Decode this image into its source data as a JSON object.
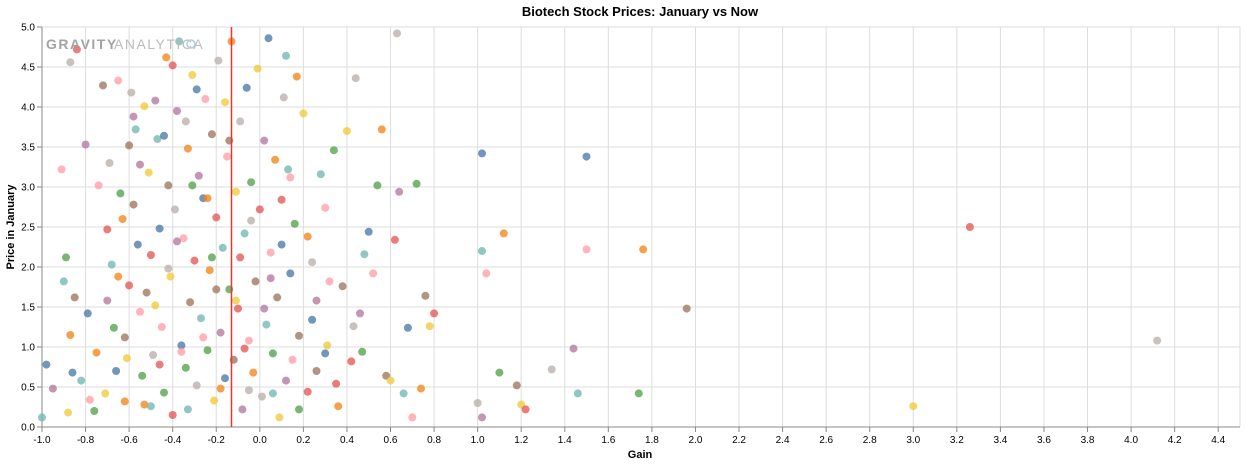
{
  "logo": {
    "word1": "GRAVITY",
    "word2": "ANALYTICA"
  },
  "chart_data": {
    "type": "scatter",
    "title": "Biotech Stock Prices: January vs Now",
    "xlabel": "Gain",
    "ylabel": "Price in January",
    "xlim": [
      -1.0,
      4.5
    ],
    "ylim": [
      0.0,
      5.0
    ],
    "x_ticks": [
      "-1.0",
      "-0.8",
      "-0.6",
      "-0.4",
      "-0.2",
      "0.0",
      "0.2",
      "0.4",
      "0.6",
      "0.8",
      "1.0",
      "1.2",
      "1.4",
      "1.6",
      "1.8",
      "2.0",
      "2.2",
      "2.4",
      "2.6",
      "2.8",
      "3.0",
      "3.2",
      "3.4",
      "3.6",
      "3.8",
      "4.0",
      "4.2",
      "4.4"
    ],
    "y_ticks": [
      "0.0",
      "0.5",
      "1.0",
      "1.5",
      "2.0",
      "2.5",
      "3.0",
      "3.5",
      "4.0",
      "4.5",
      "5.0"
    ],
    "grid": true,
    "reference_line": {
      "axis": "x",
      "value": -0.13,
      "color": "#e8372e"
    },
    "palette": [
      "#4c78a8",
      "#f58518",
      "#e45756",
      "#72b7b2",
      "#54a24b",
      "#eeca3b",
      "#b279a2",
      "#ff9da6",
      "#9d755d",
      "#bab0ac"
    ],
    "points": [
      [
        -1.0,
        0.12
      ],
      [
        -0.98,
        0.78
      ],
      [
        -0.91,
        3.22
      ],
      [
        -0.89,
        2.12
      ],
      [
        -0.87,
        1.15
      ],
      [
        -0.85,
        1.62
      ],
      [
        -0.88,
        0.18
      ],
      [
        -0.84,
        4.72
      ],
      [
        -0.87,
        4.56
      ],
      [
        -0.8,
        3.53
      ],
      [
        -0.82,
        0.58
      ],
      [
        -0.79,
        1.42
      ],
      [
        -0.78,
        0.34
      ],
      [
        -0.76,
        0.2
      ],
      [
        -0.75,
        0.93
      ],
      [
        -0.72,
        4.27
      ],
      [
        -0.71,
        0.42
      ],
      [
        -0.7,
        2.47
      ],
      [
        -0.69,
        3.3
      ],
      [
        -0.7,
        1.58
      ],
      [
        -0.68,
        2.03
      ],
      [
        -0.66,
        0.7
      ],
      [
        -0.65,
        4.33
      ],
      [
        -0.64,
        2.92
      ],
      [
        -0.63,
        2.6
      ],
      [
        -0.62,
        1.12
      ],
      [
        -0.61,
        0.86
      ],
      [
        -0.6,
        1.77
      ],
      [
        -0.59,
        4.18
      ],
      [
        -0.58,
        3.88
      ],
      [
        -0.57,
        3.72
      ],
      [
        -0.56,
        2.28
      ],
      [
        -0.55,
        1.44
      ],
      [
        -0.54,
        0.64
      ],
      [
        -0.53,
        0.28
      ],
      [
        -0.52,
        1.68
      ],
      [
        -0.51,
        3.18
      ],
      [
        -0.5,
        2.15
      ],
      [
        -0.49,
        0.9
      ],
      [
        -0.48,
        4.08
      ],
      [
        -0.47,
        3.6
      ],
      [
        -0.46,
        2.48
      ],
      [
        -0.45,
        1.25
      ],
      [
        -0.44,
        0.43
      ],
      [
        -0.43,
        4.62
      ],
      [
        -0.42,
        3.02
      ],
      [
        -0.41,
        1.88
      ],
      [
        -0.4,
        0.15
      ],
      [
        -0.39,
        2.72
      ],
      [
        -0.38,
        3.95
      ],
      [
        -0.37,
        4.82
      ],
      [
        -0.36,
        1.02
      ],
      [
        -0.35,
        2.36
      ],
      [
        -0.34,
        0.74
      ],
      [
        -0.33,
        3.48
      ],
      [
        -0.32,
        1.56
      ],
      [
        -0.31,
        4.4
      ],
      [
        -0.3,
        2.08
      ],
      [
        -0.29,
        0.52
      ],
      [
        -0.28,
        3.14
      ],
      [
        -0.27,
        1.36
      ],
      [
        -0.26,
        2.86
      ],
      [
        -0.25,
        4.1
      ],
      [
        -0.24,
        0.96
      ],
      [
        -0.23,
        1.96
      ],
      [
        -0.22,
        3.66
      ],
      [
        -0.21,
        0.33
      ],
      [
        -0.2,
        2.62
      ],
      [
        -0.19,
        4.58
      ],
      [
        -0.18,
        1.18
      ],
      [
        -0.17,
        2.24
      ],
      [
        -0.16,
        0.61
      ],
      [
        -0.15,
        3.38
      ],
      [
        -0.14,
        1.72
      ],
      [
        -0.13,
        4.82
      ],
      [
        -0.12,
        0.84
      ],
      [
        -0.11,
        2.94
      ],
      [
        -0.1,
        1.48
      ],
      [
        -0.09,
        3.82
      ],
      [
        -0.08,
        0.22
      ],
      [
        -0.07,
        2.42
      ],
      [
        -0.06,
        4.24
      ],
      [
        -0.05,
        1.08
      ],
      [
        -0.04,
        3.06
      ],
      [
        -0.03,
        0.68
      ],
      [
        -0.02,
        1.82
      ],
      [
        -0.01,
        4.48
      ],
      [
        0.0,
        2.72
      ],
      [
        0.01,
        0.38
      ],
      [
        0.02,
        3.58
      ],
      [
        0.03,
        1.28
      ],
      [
        0.04,
        4.86
      ],
      [
        0.05,
        2.18
      ],
      [
        0.06,
        0.92
      ],
      [
        0.07,
        3.34
      ],
      [
        0.08,
        1.62
      ],
      [
        0.09,
        0.12
      ],
      [
        0.1,
        2.84
      ],
      [
        0.11,
        4.12
      ],
      [
        0.12,
        0.58
      ],
      [
        0.13,
        3.22
      ],
      [
        0.14,
        1.92
      ],
      [
        0.15,
        0.84
      ],
      [
        0.16,
        2.54
      ],
      [
        0.17,
        4.38
      ],
      [
        0.18,
        1.14
      ],
      [
        0.2,
        3.92
      ],
      [
        0.22,
        0.44
      ],
      [
        0.24,
        2.06
      ],
      [
        0.26,
        1.58
      ],
      [
        0.28,
        3.16
      ],
      [
        0.3,
        0.92
      ],
      [
        0.32,
        1.82
      ],
      [
        0.34,
        3.46
      ],
      [
        0.36,
        0.26
      ],
      [
        0.38,
        1.76
      ],
      [
        0.4,
        3.7
      ],
      [
        0.42,
        0.82
      ],
      [
        0.44,
        4.36
      ],
      [
        0.46,
        1.42
      ],
      [
        0.48,
        2.16
      ],
      [
        0.5,
        2.44
      ],
      [
        0.52,
        1.92
      ],
      [
        0.54,
        3.02
      ],
      [
        0.56,
        3.72
      ],
      [
        0.58,
        0.64
      ],
      [
        0.6,
        0.58
      ],
      [
        0.62,
        2.34
      ],
      [
        0.63,
        4.92
      ],
      [
        0.64,
        2.94
      ],
      [
        0.66,
        0.42
      ],
      [
        0.68,
        1.24
      ],
      [
        0.7,
        0.12
      ],
      [
        0.72,
        3.04
      ],
      [
        0.74,
        0.48
      ],
      [
        0.76,
        1.64
      ],
      [
        0.78,
        1.26
      ],
      [
        0.8,
        1.42
      ],
      [
        1.0,
        0.3
      ],
      [
        1.02,
        0.12
      ],
      [
        1.02,
        2.2
      ],
      [
        1.02,
        3.42
      ],
      [
        1.04,
        1.92
      ],
      [
        1.1,
        0.68
      ],
      [
        1.12,
        2.42
      ],
      [
        1.18,
        0.52
      ],
      [
        1.2,
        0.28
      ],
      [
        1.22,
        0.22
      ],
      [
        1.34,
        0.72
      ],
      [
        1.44,
        0.98
      ],
      [
        1.46,
        0.42
      ],
      [
        1.5,
        3.38
      ],
      [
        1.5,
        2.22
      ],
      [
        1.74,
        0.42
      ],
      [
        1.76,
        2.22
      ],
      [
        1.96,
        1.48
      ],
      [
        3.0,
        0.26
      ],
      [
        3.26,
        2.5
      ],
      [
        4.12,
        1.08
      ],
      [
        -0.95,
        0.48
      ],
      [
        -0.9,
        1.82
      ],
      [
        -0.86,
        0.68
      ],
      [
        -0.74,
        3.02
      ],
      [
        -0.67,
        1.24
      ],
      [
        -0.62,
        0.32
      ],
      [
        -0.58,
        2.78
      ],
      [
        -0.53,
        4.01
      ],
      [
        -0.46,
        0.78
      ],
      [
        -0.42,
        1.98
      ],
      [
        -0.38,
        2.32
      ],
      [
        -0.33,
        0.22
      ],
      [
        -0.29,
        4.22
      ],
      [
        -0.26,
        1.12
      ],
      [
        -0.22,
        2.12
      ],
      [
        -0.18,
        0.48
      ],
      [
        -0.14,
        3.58
      ],
      [
        -0.11,
        1.58
      ],
      [
        -0.07,
        0.98
      ],
      [
        -0.04,
        2.58
      ],
      [
        0.02,
        1.48
      ],
      [
        0.06,
        0.42
      ],
      [
        0.1,
        2.28
      ],
      [
        0.14,
        3.12
      ],
      [
        0.18,
        0.22
      ],
      [
        0.22,
        2.38
      ],
      [
        0.26,
        0.7
      ],
      [
        0.31,
        1.02
      ],
      [
        0.35,
        0.54
      ],
      [
        0.43,
        1.26
      ],
      [
        -0.55,
        3.28
      ],
      [
        -0.5,
        0.26
      ],
      [
        -0.44,
        3.64
      ],
      [
        -0.36,
        0.94
      ],
      [
        -0.31,
        3.02
      ],
      [
        -0.24,
        2.86
      ],
      [
        -0.2,
        1.72
      ],
      [
        -0.16,
        4.06
      ],
      [
        -0.09,
        2.12
      ],
      [
        -0.05,
        0.46
      ],
      [
        0.05,
        1.86
      ],
      [
        0.12,
        4.64
      ],
      [
        0.24,
        1.34
      ],
      [
        0.3,
        2.74
      ],
      [
        0.47,
        0.94
      ],
      [
        -0.65,
        1.88
      ],
      [
        -0.6,
        3.52
      ],
      [
        -0.48,
        1.52
      ],
      [
        -0.4,
        4.52
      ],
      [
        -0.34,
        3.82
      ]
    ]
  }
}
